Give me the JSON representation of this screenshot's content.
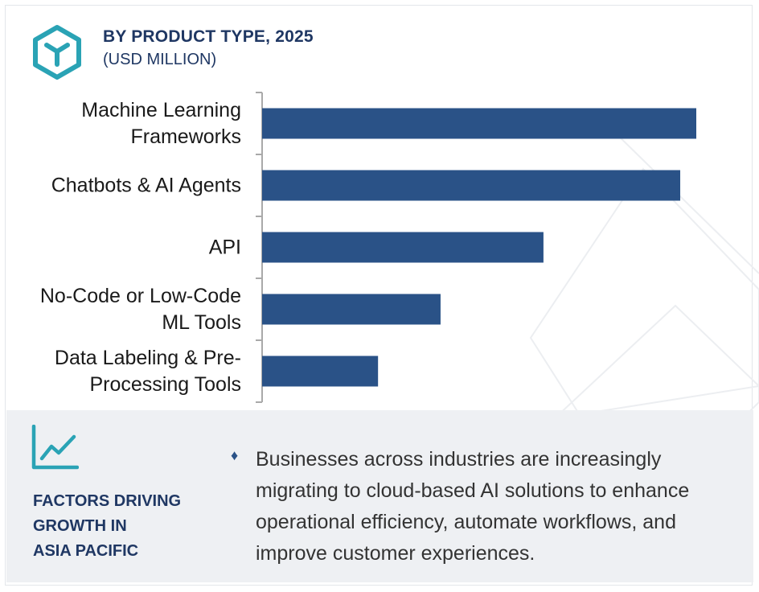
{
  "header": {
    "icon": "cube-logo-icon",
    "title": "BY PRODUCT TYPE, 2025",
    "subtitle": "(USD MILLION)"
  },
  "colors": {
    "bar": "#2a5287",
    "accent_teal": "#2aa3b5",
    "title_navy": "#1f3763",
    "panel_bg": "#eef0f3"
  },
  "chart_data": {
    "type": "bar",
    "orientation": "horizontal",
    "title": "BY PRODUCT TYPE, 2025",
    "subtitle": "(USD MILLION)",
    "categories": [
      [
        "Machine Learning",
        "Frameworks"
      ],
      [
        "Chatbots & AI Agents"
      ],
      [
        "API"
      ],
      [
        "No-Code or Low-Code",
        "ML Tools"
      ],
      [
        "Data Labeling & Pre-",
        "Processing Tools"
      ]
    ],
    "values": [
      100,
      96.3,
      64.8,
      41.1,
      26.7
    ],
    "xlabel": "",
    "ylabel": "",
    "xlim": [
      0,
      100
    ],
    "grid": false,
    "legend": "none",
    "axis_values_shown": false
  },
  "factors": {
    "icon": "line-chart-growth-icon",
    "title_lines": [
      "FACTORS DRIVING",
      "GROWTH IN",
      "ASIA PACIFIC"
    ],
    "bullet_icon": "diamond-bullet-icon",
    "bullet_glyph": "♦",
    "text": "Businesses across industries are increasingly migrating to cloud-based AI solutions to enhance operational efficiency, automate workflows, and improve customer experiences."
  }
}
